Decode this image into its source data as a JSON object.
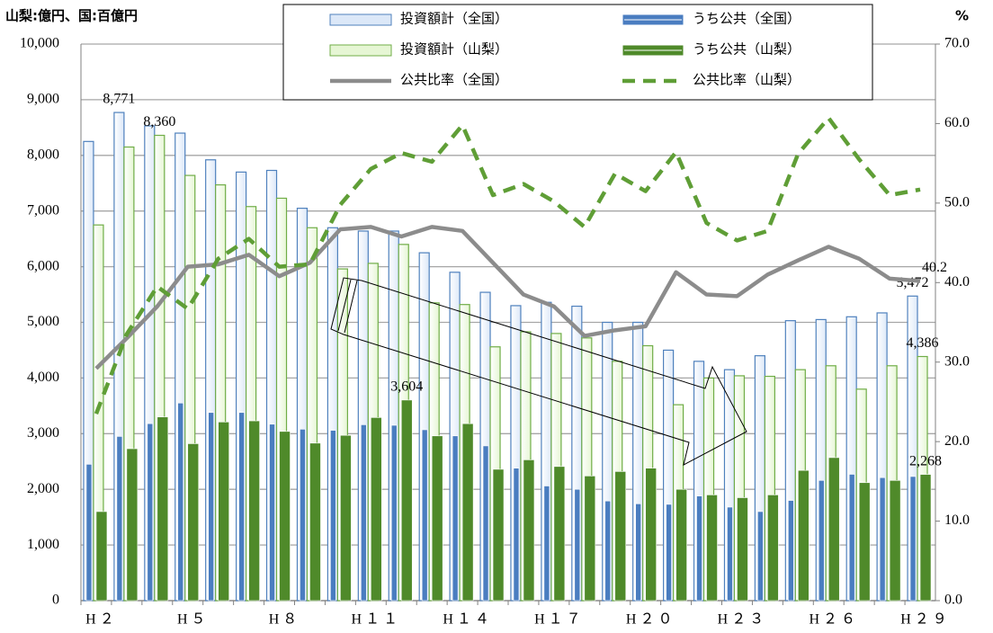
{
  "chart_data": {
    "type": "bar",
    "title": "山梨:億円、国:百億円",
    "y2_label": "%",
    "categories": [
      "H２",
      null,
      null,
      "H５",
      null,
      null,
      "H８",
      null,
      null,
      "H１１",
      null,
      null,
      "H１４",
      null,
      null,
      "H１７",
      null,
      null,
      "H２０",
      null,
      null,
      "H２３",
      null,
      null,
      "H２６",
      null,
      null,
      "H２９"
    ],
    "series": [
      {
        "name": "投資額計（全国）",
        "type": "bar",
        "color": "#4f81bd",
        "fill": "#dce8f8",
        "values": [
          8250,
          8771,
          8530,
          8400,
          7920,
          7700,
          7730,
          7050,
          6700,
          6640,
          6640,
          6250,
          5900,
          5540,
          5300,
          5360,
          5290,
          5000,
          5000,
          4500,
          4300,
          4150,
          4400,
          5030,
          5050,
          5100,
          5170,
          5472
        ],
        "value_labels": [
          null,
          "8,771",
          null,
          null,
          null,
          null,
          null,
          null,
          null,
          null,
          null,
          null,
          null,
          null,
          null,
          null,
          null,
          null,
          null,
          null,
          null,
          null,
          null,
          null,
          null,
          null,
          null,
          "5,472"
        ]
      },
      {
        "name": "うち公共（全国）",
        "type": "bar",
        "color": "#4a7dc0",
        "values": [
          2450,
          2950,
          3180,
          3550,
          3380,
          3380,
          3170,
          3080,
          3060,
          3160,
          3150,
          3070,
          2960,
          2780,
          2380,
          2060,
          2000,
          1790,
          1740,
          1730,
          1880,
          1680,
          1600,
          1800,
          2160,
          2270,
          2210,
          2230
        ]
      },
      {
        "name": "投資額計（山梨）",
        "type": "bar",
        "color": "#70ad47",
        "fill": "#e6f6d4",
        "values": [
          6750,
          8150,
          8360,
          7640,
          7470,
          7080,
          7230,
          6700,
          5960,
          6060,
          6400,
          5350,
          5320,
          4560,
          4830,
          4800,
          4720,
          4300,
          4580,
          3520,
          4000,
          4040,
          4030,
          4150,
          4220,
          3800,
          4220,
          4386
        ],
        "value_labels": [
          null,
          null,
          "8,360",
          null,
          null,
          null,
          null,
          null,
          null,
          null,
          null,
          null,
          null,
          null,
          null,
          null,
          null,
          null,
          null,
          null,
          null,
          null,
          null,
          null,
          null,
          null,
          null,
          "4,386"
        ]
      },
      {
        "name": "うち公共（山梨）",
        "type": "bar",
        "color": "#4f8a2a",
        "values": [
          1600,
          2730,
          3300,
          2820,
          3210,
          3230,
          3040,
          2830,
          2970,
          3290,
          3604,
          2960,
          3180,
          2360,
          2530,
          2410,
          2240,
          2320,
          2380,
          2000,
          1900,
          1850,
          1900,
          2340,
          2570,
          2120,
          2160,
          2268
        ],
        "value_labels": [
          null,
          null,
          null,
          null,
          null,
          null,
          null,
          null,
          null,
          null,
          "3,604",
          null,
          null,
          null,
          null,
          null,
          null,
          null,
          null,
          null,
          null,
          null,
          null,
          null,
          null,
          null,
          null,
          "2,268"
        ]
      },
      {
        "name": "公共比率（全国）",
        "type": "line",
        "axis": "y2",
        "color": "#8c8c8c",
        "values": [
          29.2,
          33,
          37,
          42,
          42.3,
          43.5,
          40.8,
          42.5,
          46.7,
          47,
          45.8,
          47,
          46.5,
          42.5,
          38.5,
          37,
          33.3,
          34,
          34.5,
          41.3,
          38.5,
          38.3,
          41,
          42.8,
          44.5,
          43,
          40.5,
          40.2
        ],
        "value_labels": [
          null,
          null,
          null,
          null,
          null,
          null,
          null,
          null,
          null,
          null,
          null,
          null,
          null,
          null,
          null,
          null,
          null,
          null,
          null,
          null,
          null,
          null,
          null,
          null,
          null,
          null,
          null,
          "40.2"
        ]
      },
      {
        "name": "公共比率（山梨）",
        "type": "line",
        "axis": "y2",
        "color": "#5f9e36",
        "dashed": true,
        "values": [
          23.5,
          33.5,
          39.5,
          36.7,
          43,
          45.5,
          42,
          42.3,
          49.8,
          54.3,
          56.3,
          55.2,
          59.8,
          51,
          52.4,
          50.2,
          47,
          53.7,
          51.5,
          56.4,
          47.5,
          45.3,
          46.5,
          56.2,
          60.7,
          55.5,
          51,
          51.7
        ]
      }
    ],
    "ylim": [
      0,
      10000
    ],
    "yticks": [
      0,
      {
        "value": 1000,
        "label": "1,000"
      },
      {
        "value": 2000,
        "label": "2,000"
      },
      {
        "value": 3000,
        "label": "3,000"
      },
      {
        "value": 4000,
        "label": "4,000"
      },
      {
        "value": 5000,
        "label": "5,000"
      },
      {
        "value": 6000,
        "label": "6,000"
      },
      {
        "value": 7000,
        "label": "7,000"
      },
      {
        "value": 8000,
        "label": "8,000"
      },
      {
        "value": 9000,
        "label": "9,000"
      },
      {
        "value": 10000,
        "label": "10,000"
      }
    ],
    "y2lim": [
      0,
      70
    ],
    "y2ticks": [
      {
        "value": 0,
        "label": "0.0"
      },
      {
        "value": 10,
        "label": "10.0"
      },
      {
        "value": 20,
        "label": "20.0"
      },
      {
        "value": 30,
        "label": "30.0"
      },
      {
        "value": 40,
        "label": "40.0"
      },
      {
        "value": 50,
        "label": "50.0"
      },
      {
        "value": 60,
        "label": "60.0"
      },
      {
        "value": 70,
        "label": "70.0"
      }
    ],
    "grid": true,
    "legend": "top"
  }
}
